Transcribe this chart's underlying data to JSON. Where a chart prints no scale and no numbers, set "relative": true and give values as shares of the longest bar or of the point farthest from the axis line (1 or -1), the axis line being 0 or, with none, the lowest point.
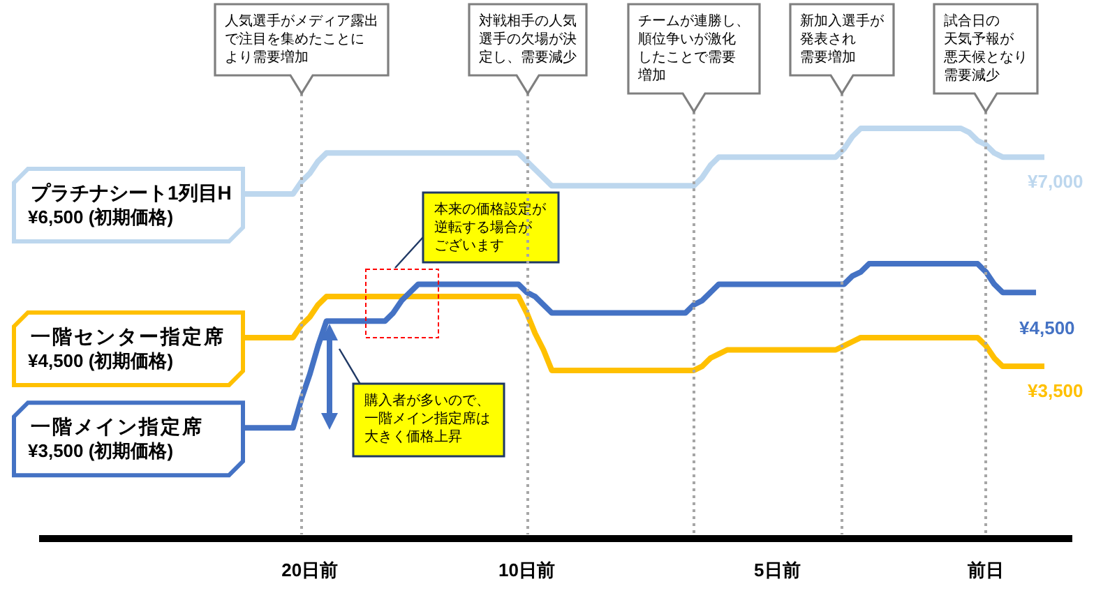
{
  "chart_data": {
    "type": "line",
    "relative": true,
    "categories": [
      null,
      null,
      null,
      null,
      null,
      null,
      null,
      null,
      "20日前",
      null,
      null,
      null,
      null,
      null,
      null,
      null,
      null,
      null,
      null,
      null,
      null,
      null,
      null,
      null,
      null,
      null,
      null,
      null,
      null,
      null,
      null,
      null,
      null,
      null,
      "10日前",
      null,
      null,
      null,
      null,
      null,
      null,
      null,
      null,
      null,
      null,
      null,
      null,
      null,
      null,
      null,
      null,
      null,
      null,
      null,
      null,
      null,
      null,
      null,
      null,
      null,
      null,
      null,
      null,
      null,
      "5日前",
      null,
      null,
      null,
      null,
      null,
      null,
      null,
      null,
      null,
      null,
      null,
      null,
      null,
      null,
      null,
      null,
      null,
      null,
      null,
      null,
      null,
      null,
      null,
      null,
      "前日",
      null,
      null,
      null,
      null,
      null,
      null,
      null
    ],
    "legend": false,
    "grid": false,
    "marker": "none",
    "line_style": "solid",
    "series": [
      {
        "name": "プラチナシート1列目H",
        "color": "#bdd7ee",
        "values": [
          0.84,
          0.84,
          0.84,
          0.84,
          0.84,
          0.84,
          0.84,
          0.87,
          0.89,
          0.92,
          0.94,
          0.94,
          0.94,
          0.94,
          0.94,
          0.94,
          0.94,
          0.94,
          0.94,
          0.94,
          0.94,
          0.94,
          0.94,
          0.94,
          0.94,
          0.94,
          0.94,
          0.94,
          0.94,
          0.94,
          0.94,
          0.94,
          0.94,
          0.94,
          0.92,
          0.9,
          0.88,
          0.86,
          0.86,
          0.86,
          0.86,
          0.86,
          0.86,
          0.86,
          0.86,
          0.86,
          0.86,
          0.86,
          0.86,
          0.86,
          0.86,
          0.86,
          0.86,
          0.86,
          0.86,
          0.88,
          0.91,
          0.93,
          0.93,
          0.93,
          0.93,
          0.93,
          0.93,
          0.93,
          0.93,
          0.93,
          0.93,
          0.93,
          0.93,
          0.93,
          0.93,
          0.93,
          0.95,
          0.98,
          1,
          1,
          1,
          1,
          1,
          1,
          1,
          1,
          1,
          1,
          1,
          1,
          1,
          0.99,
          0.97,
          0.96,
          0.94,
          0.93,
          0.93,
          0.93,
          0.93,
          0.93,
          0.93
        ]
      },
      {
        "name": "一階センター指定席",
        "color": "#ffc000",
        "values": [
          0.49,
          0.49,
          0.49,
          0.49,
          0.49,
          0.49,
          0.49,
          0.52,
          0.54,
          0.57,
          0.59,
          0.59,
          0.59,
          0.59,
          0.59,
          0.59,
          0.59,
          0.59,
          0.59,
          0.59,
          0.59,
          0.59,
          0.59,
          0.59,
          0.59,
          0.59,
          0.59,
          0.59,
          0.59,
          0.59,
          0.59,
          0.59,
          0.59,
          0.59,
          0.55,
          0.5,
          0.46,
          0.41,
          0.41,
          0.41,
          0.41,
          0.41,
          0.41,
          0.41,
          0.41,
          0.41,
          0.41,
          0.41,
          0.41,
          0.41,
          0.41,
          0.41,
          0.41,
          0.41,
          0.41,
          0.42,
          0.44,
          0.45,
          0.46,
          0.46,
          0.46,
          0.46,
          0.46,
          0.46,
          0.46,
          0.46,
          0.46,
          0.46,
          0.46,
          0.46,
          0.46,
          0.46,
          0.47,
          0.48,
          0.49,
          0.49,
          0.49,
          0.49,
          0.49,
          0.49,
          0.49,
          0.49,
          0.49,
          0.49,
          0.49,
          0.49,
          0.49,
          0.49,
          0.49,
          0.47,
          0.44,
          0.42,
          0.42,
          0.42,
          0.42,
          0.42,
          0.42
        ]
      },
      {
        "name": "一階メイン指定席",
        "color": "#4472c4",
        "values": [
          0.27,
          0.27,
          0.27,
          0.27,
          0.27,
          0.27,
          0.27,
          0.34,
          0.4,
          0.47,
          0.53,
          0.53,
          0.53,
          0.53,
          0.53,
          0.53,
          0.53,
          0.53,
          0.55,
          0.58,
          0.6,
          0.62,
          0.62,
          0.62,
          0.62,
          0.62,
          0.62,
          0.62,
          0.62,
          0.62,
          0.62,
          0.62,
          0.62,
          0.62,
          0.6,
          0.59,
          0.57,
          0.55,
          0.55,
          0.55,
          0.55,
          0.55,
          0.55,
          0.55,
          0.55,
          0.55,
          0.55,
          0.55,
          0.55,
          0.55,
          0.55,
          0.55,
          0.55,
          0.55,
          0.57,
          0.58,
          0.6,
          0.62,
          0.62,
          0.62,
          0.62,
          0.62,
          0.62,
          0.62,
          0.62,
          0.62,
          0.62,
          0.62,
          0.62,
          0.62,
          0.62,
          0.62,
          0.62,
          0.64,
          0.65,
          0.67,
          0.67,
          0.67,
          0.67,
          0.67,
          0.67,
          0.67,
          0.67,
          0.67,
          0.67,
          0.67,
          0.67,
          0.67,
          0.67,
          0.65,
          0.62,
          0.6,
          0.6,
          0.6,
          0.6,
          0.6,
          null
        ]
      }
    ],
    "annotations": [
      "¥6,500 (初期価格)",
      "¥4,500 (初期価格)",
      "¥3,500 (初期価格)",
      "¥7,000",
      "¥4,500",
      "¥3,500",
      "本来の価格設定が逆転する場合がございます",
      "購入者が多いので、一階メイン指定席は大きく価格上昇",
      "人気選手がメディア露出で注目を集めたことにより需要増加",
      "対戦相手の人気選手の欠場が決定し、需要減少",
      "チームが連勝し、順位争いが激化したことで需要増加",
      "新加入選手が発表され需要増加",
      "試合日の天気予報が悪天候となり需要減少"
    ]
  }
}
